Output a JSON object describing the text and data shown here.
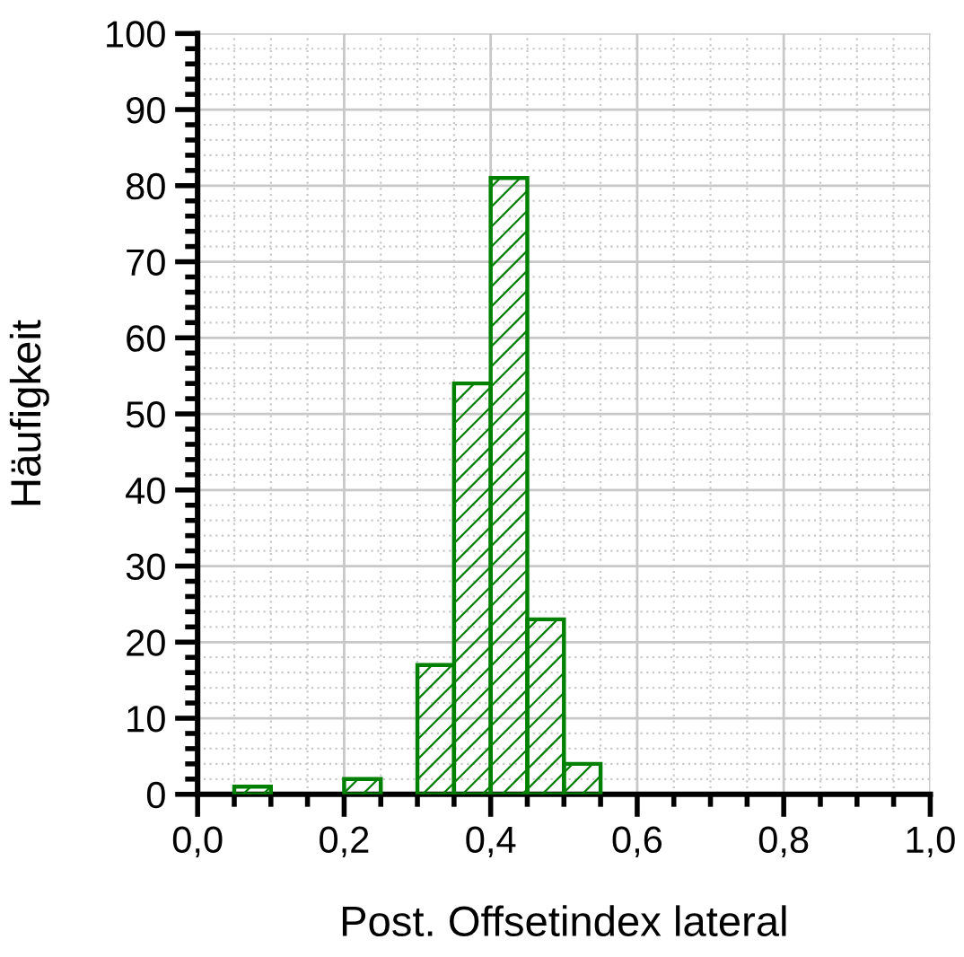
{
  "chart_data": {
    "type": "histogram",
    "xlabel": "Post. Offsetindex lateral",
    "ylabel": "Häufigkeit",
    "bins": [
      0.05,
      0.1,
      0.15,
      0.2,
      0.25,
      0.3,
      0.35,
      0.4,
      0.45,
      0.5,
      0.55
    ],
    "values": [
      1,
      0,
      0,
      2,
      0,
      17,
      54,
      81,
      23,
      4
    ],
    "color": "#008000",
    "xlim": [
      0,
      1
    ],
    "xticks": [
      {
        "value": 0,
        "label": "0,0"
      },
      {
        "value": 0.2,
        "label": "0,2"
      },
      {
        "value": 0.4,
        "label": "0,4"
      },
      {
        "value": 0.6,
        "label": "0,6"
      },
      {
        "value": 0.8,
        "label": "0,8"
      },
      {
        "value": 1,
        "label": "1,0"
      }
    ],
    "ylim": [
      0,
      100
    ],
    "yticks": [
      0,
      10,
      20,
      30,
      40,
      50,
      60,
      70,
      80,
      90,
      100
    ],
    "grid": true,
    "legend": false
  }
}
